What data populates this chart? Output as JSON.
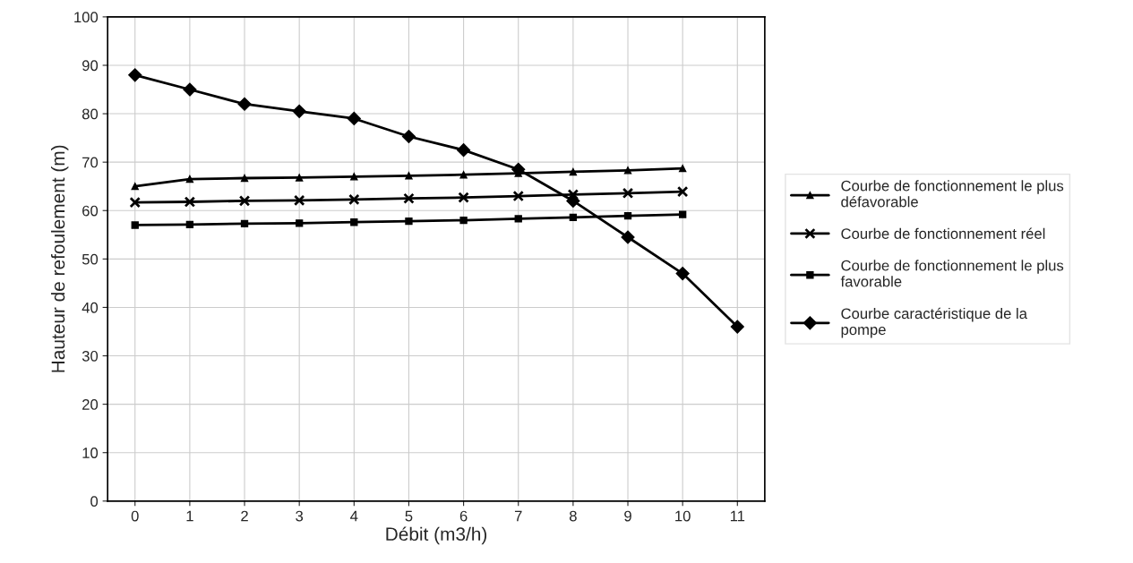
{
  "chart_data": {
    "type": "line",
    "xlabel": "Débit (m3/h)",
    "ylabel": "Hauteur de refoulement (m)",
    "categories": [
      "0",
      "1",
      "2",
      "3",
      "4",
      "5",
      "6",
      "7",
      "8",
      "9",
      "10",
      "11"
    ],
    "ylim": [
      0,
      100
    ],
    "yticks": [
      0,
      10,
      20,
      30,
      40,
      50,
      60,
      70,
      80,
      90,
      100
    ],
    "grid": true,
    "legend": "right",
    "line_style": "solid",
    "series": [
      {
        "name": "Courbe de fonctionnement le plus défavorable",
        "color": "#000000",
        "marker": "triangle",
        "values": [
          65,
          66.5,
          66.7,
          66.8,
          67,
          67.2,
          67.4,
          67.7,
          68,
          68.3,
          68.7,
          null
        ]
      },
      {
        "name": "Courbe de fonctionnement réel",
        "color": "#000000",
        "marker": "cross",
        "values": [
          61.7,
          61.8,
          62,
          62.1,
          62.3,
          62.5,
          62.7,
          63,
          63.3,
          63.6,
          63.9,
          null
        ]
      },
      {
        "name": "Courbe de fonctionnement le plus favorable",
        "color": "#000000",
        "marker": "square",
        "values": [
          57,
          57.1,
          57.3,
          57.4,
          57.6,
          57.8,
          58,
          58.3,
          58.6,
          58.9,
          59.2,
          null
        ]
      },
      {
        "name": "Courbe caractéristique de la pompe",
        "color": "#000000",
        "marker": "diamond",
        "values": [
          88,
          85,
          82,
          80.5,
          79,
          75.3,
          72.5,
          68.5,
          62,
          54.5,
          47,
          36
        ]
      }
    ]
  }
}
